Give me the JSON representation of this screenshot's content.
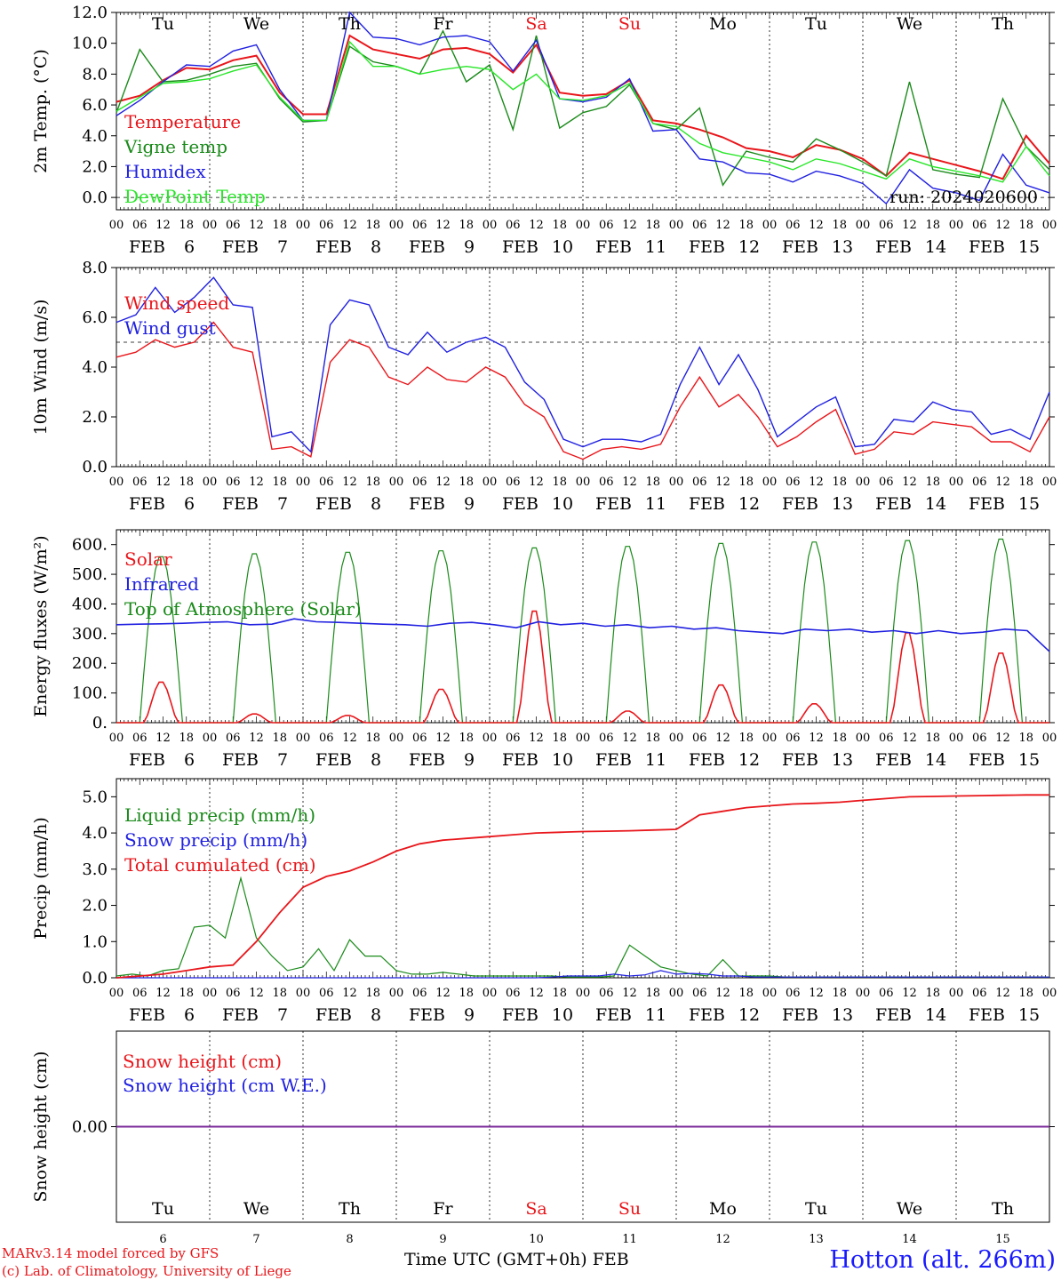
{
  "chart_data": [
    {
      "type": "line",
      "ylabel": "2m Temp. (°C)",
      "yticks": [
        "0.0",
        "2.0",
        "4.0",
        "6.0",
        "8.0",
        "10.0",
        "12.0"
      ],
      "ylim": [
        -0.8,
        12.0
      ],
      "reference_line": 0.0,
      "x_hours": [
        0,
        6,
        12,
        18,
        24,
        30,
        36,
        42,
        48,
        54,
        60,
        66,
        72,
        78,
        84,
        90,
        96,
        102,
        108,
        114,
        120,
        126,
        132,
        138,
        144,
        150,
        156,
        162,
        168,
        174,
        180,
        186,
        192,
        198,
        204,
        210,
        216,
        222,
        228,
        234,
        240
      ],
      "day_labels": [
        "Tu",
        "We",
        "Th",
        "Fr",
        "Sa",
        "Su",
        "Mo",
        "Tu",
        "We",
        "Th"
      ],
      "weekend_days": [
        "Sa",
        "Su"
      ],
      "run_label": "run: 2024020600",
      "series": [
        {
          "name": "Temperature",
          "color": "#e8161b",
          "values": [
            6.2,
            6.6,
            7.6,
            8.4,
            8.3,
            8.9,
            9.2,
            6.8,
            5.4,
            5.4,
            10.5,
            9.6,
            9.3,
            9.0,
            9.6,
            9.7,
            9.3,
            8.1,
            9.9,
            6.8,
            6.6,
            6.7,
            7.6,
            5.0,
            4.8,
            4.4,
            3.9,
            3.2,
            3.0,
            2.6,
            3.4,
            3.1,
            2.5,
            1.4,
            2.9,
            2.5,
            2.1,
            1.7,
            1.2,
            4.0,
            2.2
          ]
        },
        {
          "name": "Vigne temp",
          "color": "#1a8a1a",
          "values": [
            5.5,
            9.6,
            7.5,
            7.6,
            8.0,
            8.5,
            8.7,
            6.4,
            4.9,
            5.0,
            9.8,
            8.8,
            8.5,
            8.0,
            10.8,
            7.5,
            8.6,
            4.4,
            10.5,
            4.5,
            5.5,
            5.9,
            7.3,
            4.8,
            4.4,
            5.8,
            0.8,
            3.0,
            2.6,
            2.3,
            3.8,
            3.1,
            2.3,
            1.4,
            7.5,
            1.8,
            1.5,
            1.3,
            6.4,
            3.3,
            1.8
          ]
        },
        {
          "name": "Humidex",
          "color": "#2020e0",
          "values": [
            5.3,
            6.3,
            7.5,
            8.6,
            8.5,
            9.5,
            9.9,
            7.0,
            5.0,
            5.0,
            12.0,
            10.4,
            10.3,
            9.9,
            10.4,
            10.5,
            10.1,
            8.2,
            10.2,
            6.4,
            6.2,
            6.5,
            7.7,
            4.3,
            4.4,
            2.5,
            2.3,
            1.6,
            1.5,
            1.0,
            1.7,
            1.4,
            0.9,
            -0.4,
            1.8,
            0.6,
            0.3,
            -0.2,
            2.8,
            0.8,
            0.3
          ]
        },
        {
          "name": "DewPoint Temp",
          "color": "#27e627",
          "values": [
            5.6,
            6.5,
            7.4,
            7.5,
            7.7,
            8.2,
            8.6,
            6.5,
            5.0,
            5.0,
            10.1,
            8.5,
            8.5,
            8.0,
            8.3,
            8.5,
            8.3,
            7.0,
            8.0,
            6.4,
            6.3,
            6.6,
            7.4,
            4.8,
            4.6,
            3.5,
            2.9,
            2.6,
            2.3,
            1.8,
            2.5,
            2.2,
            1.7,
            1.2,
            2.5,
            2.0,
            1.7,
            1.4,
            1.0,
            3.3,
            1.4
          ]
        }
      ],
      "date_labels": [
        "FEB 6",
        "FEB 7",
        "FEB 8",
        "FEB 9",
        "FEB 10",
        "FEB 11",
        "FEB 12",
        "FEB 13",
        "FEB 14",
        "FEB 15"
      ]
    },
    {
      "type": "line",
      "ylabel": "10m Wind (m/s)",
      "yticks": [
        "0.0",
        "2.0",
        "4.0",
        "6.0",
        "8.0"
      ],
      "ylim": [
        0,
        8.0
      ],
      "reference_line": 5.0,
      "series": [
        {
          "name": "Wind speed",
          "color": "#e8161b",
          "values": [
            4.4,
            4.6,
            5.1,
            4.8,
            5.0,
            5.8,
            4.8,
            4.6,
            0.7,
            0.8,
            0.4,
            4.2,
            5.1,
            4.8,
            3.6,
            3.3,
            4.0,
            3.5,
            3.4,
            4.0,
            3.6,
            2.5,
            2.0,
            0.6,
            0.3,
            0.7,
            0.8,
            0.7,
            0.9,
            2.4,
            3.6,
            2.4,
            2.9,
            2.0,
            0.8,
            1.2,
            1.8,
            2.3,
            0.5,
            0.7,
            1.4,
            1.3,
            1.8,
            1.7,
            1.6,
            1.0,
            1.0,
            0.6,
            2.0
          ]
        },
        {
          "name": "Wind gust",
          "color": "#2020e0",
          "values": [
            5.8,
            6.1,
            7.2,
            6.2,
            6.8,
            7.6,
            6.5,
            6.4,
            1.2,
            1.4,
            0.6,
            5.7,
            6.7,
            6.5,
            4.8,
            4.5,
            5.4,
            4.6,
            5.0,
            5.2,
            4.8,
            3.4,
            2.7,
            1.1,
            0.8,
            1.1,
            1.1,
            1.0,
            1.3,
            3.3,
            4.8,
            3.3,
            4.5,
            3.1,
            1.2,
            1.8,
            2.4,
            2.8,
            0.8,
            0.9,
            1.9,
            1.8,
            2.6,
            2.3,
            2.2,
            1.3,
            1.5,
            1.1,
            3.0
          ]
        }
      ],
      "x_hours": [
        0,
        6,
        12,
        18,
        24,
        30,
        36,
        42,
        48,
        54,
        60,
        66,
        72,
        78,
        84,
        90,
        96,
        102,
        108,
        114,
        120,
        126,
        132,
        138,
        144,
        150,
        156,
        162,
        168,
        174,
        180,
        186,
        192,
        198,
        204,
        210,
        216,
        222,
        228,
        234,
        240,
        246,
        252,
        258,
        264,
        270,
        276,
        282,
        288
      ],
      "date_labels": [
        "FEB 6",
        "FEB 7",
        "FEB 8",
        "FEB 9",
        "FEB 10",
        "FEB 11",
        "FEB 12",
        "FEB 13",
        "FEB 14",
        "FEB 15"
      ]
    },
    {
      "type": "line",
      "ylabel": "Energy fluxes (W/m²)",
      "yticks": [
        "0.",
        "100.",
        "200.",
        "300.",
        "400.",
        "500.",
        "600."
      ],
      "ylim": [
        0,
        650
      ],
      "series": [
        {
          "name": "Solar",
          "color": "#e8161b",
          "peaks": [
            140,
            30,
            25,
            115,
            385,
            40,
            130,
            65,
            310,
            240
          ]
        },
        {
          "name": "Infrared",
          "color": "#2020e0",
          "values": [
            330,
            332,
            333,
            335,
            338,
            340,
            330,
            332,
            350,
            340,
            338,
            335,
            332,
            330,
            325,
            335,
            338,
            330,
            320,
            340,
            330,
            335,
            325,
            330,
            320,
            325,
            315,
            320,
            310,
            305,
            300,
            315,
            310,
            315,
            305,
            310,
            300,
            310,
            300,
            305,
            315,
            310,
            240
          ]
        },
        {
          "name": "Top of Atmosphere (Solar)",
          "color": "#1a8a1a",
          "peaks": [
            565,
            575,
            580,
            585,
            595,
            600,
            610,
            615,
            620,
            625
          ]
        }
      ],
      "date_labels": [
        "FEB 6",
        "FEB 7",
        "FEB 8",
        "FEB 9",
        "FEB 10",
        "FEB 11",
        "FEB 12",
        "FEB 13",
        "FEB 14",
        "FEB 15"
      ]
    },
    {
      "type": "line",
      "ylabel": "Precip (mm/h)",
      "yticks": [
        "0.0",
        "1.0",
        "2.0",
        "3.0",
        "4.0",
        "5.0"
      ],
      "ylim": [
        0,
        5.5
      ],
      "series": [
        {
          "name": "Liquid precip (mm/h)",
          "color": "#1a8a1a",
          "values": [
            0.05,
            0.1,
            0.05,
            0.2,
            0.25,
            1.4,
            1.45,
            1.1,
            2.75,
            1.1,
            0.6,
            0.2,
            0.3,
            0.8,
            0.2,
            1.05,
            0.6,
            0.6,
            0.2,
            0.1,
            0.1,
            0.15,
            0.1,
            0.05,
            0.05,
            0.05,
            0.05,
            0.05,
            0.05,
            0.02,
            0.02,
            0.02,
            0.05,
            0.9,
            0.6,
            0.3,
            0.2,
            0.1,
            0.05,
            0.5,
            0.05,
            0.05,
            0.05,
            0.02,
            0.02,
            0.02,
            0.02,
            0.02,
            0.02,
            0.02,
            0.02,
            0.02,
            0.02,
            0.02,
            0.02,
            0.02,
            0.02,
            0.02,
            0.02,
            0.02,
            0.02
          ]
        },
        {
          "name": "Snow precip (mm/h)",
          "color": "#2020e0",
          "values": [
            0,
            0,
            0,
            0,
            0,
            0,
            0,
            0,
            0,
            0,
            0,
            0,
            0,
            0,
            0,
            0,
            0,
            0,
            0,
            0,
            0,
            0,
            0,
            0,
            0,
            0,
            0,
            0,
            0.02,
            0.05,
            0.05,
            0.05,
            0.1,
            0.05,
            0.08,
            0.2,
            0.1,
            0.12,
            0.1,
            0.05,
            0.05,
            0.02,
            0.02,
            0.02,
            0.02,
            0.02,
            0.02,
            0.02,
            0.02,
            0.02,
            0.02,
            0.02,
            0.02,
            0.02,
            0.02,
            0.02,
            0.02,
            0.02,
            0.02,
            0.02,
            0.02
          ]
        },
        {
          "name": "Total cumulated (cm)",
          "color": "#e8161b",
          "values": [
            0.0,
            0.05,
            0.1,
            0.2,
            0.3,
            0.35,
            1.0,
            1.8,
            2.5,
            2.8,
            2.95,
            3.2,
            3.5,
            3.7,
            3.8,
            3.85,
            3.9,
            3.95,
            4.0,
            4.02,
            4.04,
            4.05,
            4.06,
            4.08,
            4.1,
            4.5,
            4.6,
            4.7,
            4.75,
            4.8,
            4.82,
            4.85,
            4.9,
            4.95,
            5.0,
            5.01,
            5.02,
            5.03,
            5.04,
            5.05,
            5.05
          ]
        }
      ],
      "date_labels": [
        "FEB 6",
        "FEB 7",
        "FEB 8",
        "FEB 9",
        "FEB 10",
        "FEB 11",
        "FEB 12",
        "FEB 13",
        "FEB 14",
        "FEB 15"
      ]
    },
    {
      "type": "line",
      "ylabel": "Snow height (cm)",
      "yticks": [
        "0.00"
      ],
      "ylim": [
        -1,
        1
      ],
      "series": [
        {
          "name": "Snow height (cm)",
          "color": "#e8161b",
          "values": [
            0,
            0
          ]
        },
        {
          "name": "Snow height (cm W.E.)",
          "color": "#2020e0",
          "values": [
            0,
            0
          ]
        }
      ],
      "day_labels": [
        "Tu",
        "We",
        "Th",
        "Fr",
        "Sa",
        "Su",
        "Mo",
        "Tu",
        "We",
        "Th"
      ],
      "day_numbers": [
        "6",
        "7",
        "8",
        "9",
        "10",
        "11",
        "12",
        "13",
        "14",
        "15"
      ],
      "xlabel": "Time UTC (GMT+0h) FEB"
    }
  ],
  "hour_tick_labels": [
    "00",
    "06",
    "12",
    "18"
  ],
  "footer": {
    "credit_line1": "MARv3.14 model forced by GFS",
    "credit_line2": "(c) Lab. of Climatology, University of Liege",
    "xlabel": "Time UTC (GMT+0h) FEB",
    "station": "Hotton (alt. 266m)"
  },
  "colors": {
    "weekend": "#e8161b",
    "red": "#e8161b",
    "green": "#1a8a1a",
    "blue": "#2020e0",
    "lightgreen": "#27e627",
    "snowline": "#7a2a9a"
  }
}
